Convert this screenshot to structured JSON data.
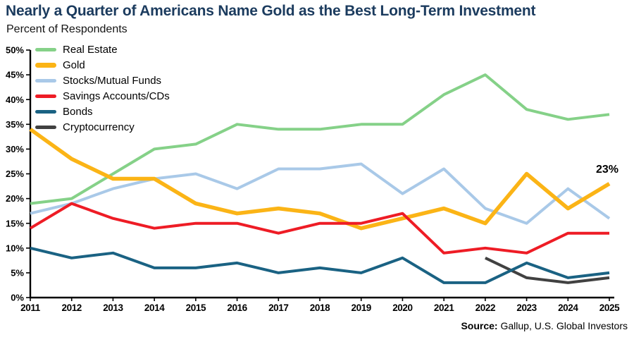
{
  "page": {
    "title": "Nearly a Quarter of Americans Name Gold as the Best Long-Term Investment",
    "subtitle": "Percent of Respondents",
    "source_label": "Source:",
    "source_text": "Gallup, U.S. Global Investors"
  },
  "annotation": {
    "text": "23%",
    "series": "Gold",
    "year": 2025
  },
  "chart_data": {
    "type": "line",
    "title": "Nearly a Quarter of Americans Name Gold as the Best Long-Term Investment",
    "subtitle": "Percent of Respondents",
    "xlabel": "",
    "ylabel": "Percent of Respondents",
    "x": [
      2011,
      2012,
      2013,
      2014,
      2015,
      2016,
      2017,
      2018,
      2019,
      2020,
      2021,
      2022,
      2023,
      2024,
      2025
    ],
    "ylim": [
      0,
      50
    ],
    "ytick_step": 5,
    "ytick_suffix": "%",
    "grid": false,
    "legend_position": "top-left",
    "series": [
      {
        "name": "Real Estate",
        "color": "#85D188",
        "values": [
          19,
          20,
          25,
          30,
          31,
          35,
          34,
          34,
          35,
          35,
          41,
          45,
          38,
          36,
          37
        ]
      },
      {
        "name": "Gold",
        "color": "#FBB416",
        "values": [
          34,
          28,
          24,
          24,
          19,
          17,
          18,
          17,
          14,
          16,
          18,
          15,
          25,
          18,
          23
        ]
      },
      {
        "name": "Stocks/Mutual Funds",
        "color": "#A9C9E8",
        "values": [
          17,
          19,
          22,
          24,
          25,
          22,
          26,
          26,
          27,
          21,
          26,
          18,
          15,
          22,
          16
        ]
      },
      {
        "name": "Savings Accounts/CDs",
        "color": "#EE1C25",
        "values": [
          14,
          19,
          16,
          14,
          15,
          15,
          13,
          15,
          15,
          17,
          9,
          10,
          9,
          13,
          13
        ]
      },
      {
        "name": "Bonds",
        "color": "#1A6283",
        "values": [
          10,
          8,
          9,
          6,
          6,
          7,
          5,
          6,
          5,
          8,
          3,
          3,
          7,
          4,
          5
        ]
      },
      {
        "name": "Cryptocurrency",
        "color": "#414141",
        "values": [
          null,
          null,
          null,
          null,
          null,
          null,
          null,
          null,
          null,
          null,
          null,
          8,
          4,
          3,
          4
        ]
      }
    ]
  }
}
